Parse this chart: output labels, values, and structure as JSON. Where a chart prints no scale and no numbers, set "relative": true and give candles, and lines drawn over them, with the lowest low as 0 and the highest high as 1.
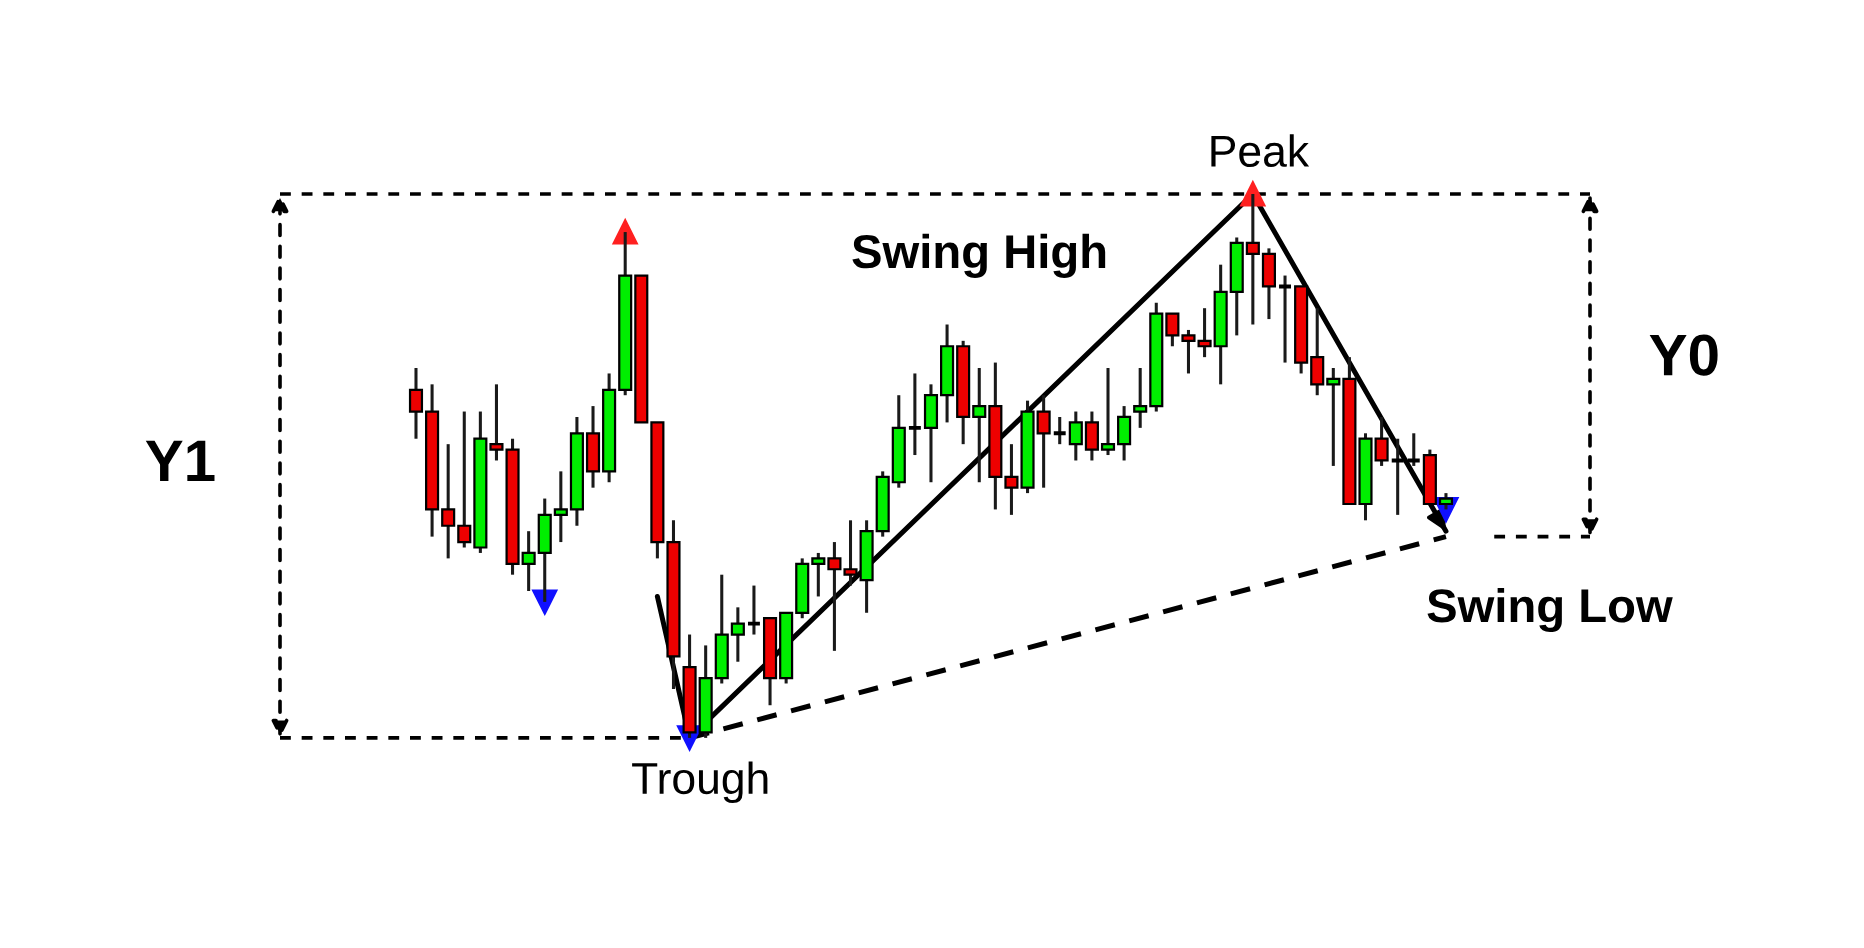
{
  "chart_data": {
    "type": "candlestick",
    "relative": true,
    "categories": [
      null,
      null,
      null,
      null,
      null,
      null,
      null,
      null,
      null,
      null,
      null,
      null,
      null,
      null,
      null,
      null,
      null,
      null,
      null,
      null,
      null,
      null,
      null,
      null,
      null,
      null,
      null,
      null,
      null,
      null,
      null,
      null,
      null,
      null,
      null,
      null,
      null,
      null,
      null,
      null,
      null,
      null,
      null,
      null,
      null,
      null,
      null,
      null,
      null,
      null,
      null,
      null,
      null,
      null,
      null,
      null,
      null,
      null,
      null,
      null,
      null,
      null,
      null,
      null,
      null
    ],
    "ohlc": [
      [
        0.64,
        0.68,
        0.55,
        0.6
      ],
      [
        0.6,
        0.65,
        0.37,
        0.42
      ],
      [
        0.42,
        0.54,
        0.33,
        0.39
      ],
      [
        0.39,
        0.6,
        0.35,
        0.36
      ],
      [
        0.35,
        0.6,
        0.34,
        0.55
      ],
      [
        0.54,
        0.65,
        0.51,
        0.53
      ],
      [
        0.53,
        0.55,
        0.3,
        0.32
      ],
      [
        0.32,
        0.38,
        0.27,
        0.34
      ],
      [
        0.34,
        0.44,
        0.25,
        0.41
      ],
      [
        0.41,
        0.49,
        0.36,
        0.42
      ],
      [
        0.42,
        0.59,
        0.39,
        0.56
      ],
      [
        0.56,
        0.61,
        0.46,
        0.49
      ],
      [
        0.49,
        0.67,
        0.47,
        0.64
      ],
      [
        0.64,
        0.93,
        0.63,
        0.85
      ],
      [
        0.85,
        0.85,
        0.58,
        0.58
      ],
      [
        0.58,
        0.58,
        0.33,
        0.36
      ],
      [
        0.36,
        0.4,
        0.09,
        0.15
      ],
      [
        0.13,
        0.19,
        0,
        0.01
      ],
      [
        0.01,
        0.17,
        0,
        0.11
      ],
      [
        0.11,
        0.3,
        0.1,
        0.19
      ],
      [
        0.19,
        0.24,
        0.14,
        0.21
      ],
      [
        0.21,
        0.28,
        0.19,
        0.21
      ],
      [
        0.22,
        0.22,
        0.06,
        0.11
      ],
      [
        0.11,
        0.23,
        0.1,
        0.23
      ],
      [
        0.23,
        0.33,
        0.22,
        0.32
      ],
      [
        0.32,
        0.34,
        0.26,
        0.33
      ],
      [
        0.33,
        0.36,
        0.16,
        0.31
      ],
      [
        0.31,
        0.4,
        0.28,
        0.3
      ],
      [
        0.29,
        0.4,
        0.23,
        0.38
      ],
      [
        0.38,
        0.49,
        0.37,
        0.48
      ],
      [
        0.47,
        0.63,
        0.46,
        0.57
      ],
      [
        0.57,
        0.67,
        0.52,
        0.57
      ],
      [
        0.57,
        0.65,
        0.47,
        0.63
      ],
      [
        0.63,
        0.76,
        0.58,
        0.72
      ],
      [
        0.72,
        0.73,
        0.54,
        0.59
      ],
      [
        0.59,
        0.68,
        0.47,
        0.61
      ],
      [
        0.61,
        0.69,
        0.42,
        0.48
      ],
      [
        0.48,
        0.54,
        0.41,
        0.46
      ],
      [
        0.46,
        0.62,
        0.45,
        0.6
      ],
      [
        0.6,
        0.63,
        0.46,
        0.56
      ],
      [
        0.56,
        0.59,
        0.54,
        0.56
      ],
      [
        0.54,
        0.6,
        0.51,
        0.58
      ],
      [
        0.58,
        0.6,
        0.51,
        0.53
      ],
      [
        0.53,
        0.68,
        0.52,
        0.54
      ],
      [
        0.54,
        0.61,
        0.51,
        0.59
      ],
      [
        0.6,
        0.68,
        0.57,
        0.61
      ],
      [
        0.61,
        0.8,
        0.6,
        0.78
      ],
      [
        0.78,
        0.78,
        0.72,
        0.74
      ],
      [
        0.74,
        0.75,
        0.67,
        0.73
      ],
      [
        0.73,
        0.79,
        0.7,
        0.72
      ],
      [
        0.72,
        0.87,
        0.65,
        0.82
      ],
      [
        0.82,
        0.92,
        0.74,
        0.91
      ],
      [
        0.91,
        1,
        0.76,
        0.89
      ],
      [
        0.89,
        0.9,
        0.77,
        0.83
      ],
      [
        0.83,
        0.85,
        0.69,
        0.83
      ],
      [
        0.83,
        0.83,
        0.67,
        0.69
      ],
      [
        0.7,
        0.79,
        0.63,
        0.65
      ],
      [
        0.65,
        0.68,
        0.5,
        0.66
      ],
      [
        0.66,
        0.7,
        0.43,
        0.43
      ],
      [
        0.43,
        0.56,
        0.4,
        0.55
      ],
      [
        0.55,
        0.59,
        0.5,
        0.51
      ],
      [
        0.51,
        0.55,
        0.41,
        0.51
      ],
      [
        0.51,
        0.56,
        0.5,
        0.51
      ],
      [
        0.52,
        0.53,
        0.43,
        0.43
      ],
      [
        0.43,
        0.45,
        0.42,
        0.44
      ]
    ],
    "colors": [
      "#ee0000",
      "#ee0000",
      "#ee0000",
      "#ee0000",
      "#00ee00",
      "#ee0000",
      "#ee0000",
      "#00ee00",
      "#00ee00",
      "#00ee00",
      "#00ee00",
      "#ee0000",
      "#00ee00",
      "#00ee00",
      "#ee0000",
      "#ee0000",
      "#ee0000",
      "#ee0000",
      "#00ee00",
      "#00ee00",
      "#00ee00",
      "#000000",
      "#ee0000",
      "#00ee00",
      "#00ee00",
      "#00ee00",
      "#ee0000",
      "#ee0000",
      "#00ee00",
      "#00ee00",
      "#00ee00",
      "#000000",
      "#00ee00",
      "#00ee00",
      "#ee0000",
      "#00ee00",
      "#ee0000",
      "#ee0000",
      "#00ee00",
      "#ee0000",
      "#000000",
      "#00ee00",
      "#ee0000",
      "#00ee00",
      "#00ee00",
      "#00ee00",
      "#00ee00",
      "#ee0000",
      "#ee0000",
      "#ee0000",
      "#00ee00",
      "#00ee00",
      "#ee0000",
      "#ee0000",
      "#000000",
      "#ee0000",
      "#ee0000",
      "#00ee00",
      "#ee0000",
      "#00ee00",
      "#ee0000",
      "#000000",
      "#000000",
      "#ee0000",
      "#00ee00"
    ],
    "series": [
      {
        "type": "line",
        "color": "#000000",
        "line_style": "solid",
        "values": [
          null,
          null,
          null,
          null,
          null,
          null,
          null,
          null,
          null,
          null,
          null,
          null,
          null,
          null,
          null,
          0.26,
          null,
          0,
          null,
          null,
          null,
          null,
          null,
          null,
          null,
          null,
          null,
          null,
          null,
          null,
          null,
          null,
          null,
          null,
          null,
          null,
          null,
          null,
          null,
          null,
          null,
          null,
          null,
          null,
          null,
          null,
          null,
          null,
          null,
          null,
          null,
          null,
          1,
          null,
          null,
          null,
          null,
          null,
          null,
          null,
          null,
          null,
          null,
          null,
          0.38
        ]
      },
      {
        "type": "line",
        "color": "#000000",
        "line_style": "dashed",
        "values": [
          null,
          null,
          null,
          null,
          null,
          null,
          null,
          null,
          null,
          null,
          null,
          null,
          null,
          null,
          null,
          null,
          null,
          0,
          null,
          null,
          null,
          null,
          null,
          null,
          null,
          null,
          null,
          null,
          null,
          null,
          null,
          null,
          null,
          null,
          null,
          null,
          null,
          null,
          null,
          null,
          null,
          null,
          null,
          null,
          null,
          null,
          null,
          null,
          null,
          null,
          null,
          null,
          null,
          null,
          null,
          null,
          null,
          null,
          null,
          null,
          null,
          null,
          null,
          null,
          0.37
        ]
      },
      {
        "type": "scatter",
        "color": "#ff2020",
        "marker": "triangle",
        "values": [
          null,
          null,
          null,
          null,
          null,
          null,
          null,
          null,
          null,
          null,
          null,
          null,
          null,
          0.93,
          null,
          null,
          null,
          null,
          null,
          null,
          null,
          null,
          null,
          null,
          null,
          null,
          null,
          null,
          null,
          null,
          null,
          null,
          null,
          null,
          null,
          null,
          null,
          null,
          null,
          null,
          null,
          null,
          null,
          null,
          null,
          null,
          null,
          null,
          null,
          null,
          null,
          null,
          1,
          null,
          null,
          null,
          null,
          null,
          null,
          null,
          null,
          null,
          null,
          null,
          null
        ]
      },
      {
        "type": "scatter",
        "color": "#1010ff",
        "marker": "triangle",
        "values": [
          null,
          null,
          null,
          null,
          null,
          null,
          null,
          null,
          0.25,
          null,
          null,
          null,
          null,
          null,
          null,
          null,
          null,
          0,
          null,
          null,
          null,
          null,
          null,
          null,
          null,
          null,
          null,
          null,
          null,
          null,
          null,
          null,
          null,
          null,
          null,
          null,
          null,
          null,
          null,
          null,
          null,
          null,
          null,
          null,
          null,
          null,
          null,
          null,
          null,
          null,
          null,
          null,
          null,
          null,
          null,
          null,
          null,
          null,
          null,
          null,
          null,
          null,
          null,
          null,
          0.42
        ]
      }
    ],
    "ref_lines": [
      {
        "axis": "y",
        "value": 1,
        "color": "#000000",
        "line_style": "dashed"
      },
      {
        "axis": "y",
        "value": 0,
        "color": "#000000",
        "line_style": "dashed"
      }
    ],
    "annotations": [
      "Swing High",
      {
        "text": "Peak",
        "y": 1
      },
      {
        "text": "Trough",
        "y": 0
      },
      "Swing Low",
      "Y1",
      "Y0"
    ]
  }
}
